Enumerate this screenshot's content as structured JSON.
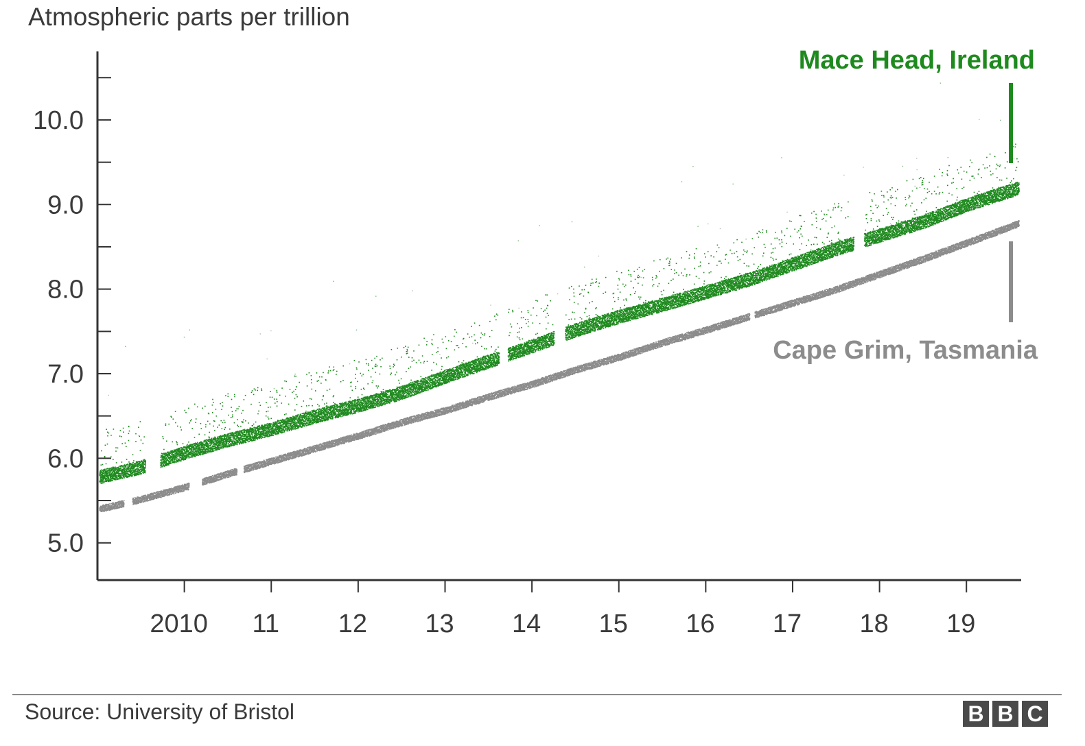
{
  "chart_data": {
    "type": "scatter",
    "title": "",
    "ylabel": "Atmospheric parts per trillion",
    "xlabel": "",
    "xlim": [
      2009.0,
      2019.63
    ],
    "ylim": [
      4.56,
      10.81
    ],
    "yticks": [
      5.0,
      6.0,
      7.0,
      8.0,
      9.0,
      10.0
    ],
    "ytick_labels": [
      "5.0",
      "6.0",
      "7.0",
      "8.0",
      "9.0",
      "10.0"
    ],
    "yminor_ticks": [
      5.5,
      6.5,
      7.5,
      8.5,
      9.5,
      10.5
    ],
    "xticks": [
      2010,
      2011,
      2012,
      2013,
      2014,
      2015,
      2016,
      2017,
      2018,
      2019
    ],
    "xtick_labels": [
      "2010",
      "11",
      "12",
      "13",
      "14",
      "15",
      "16",
      "17",
      "18",
      "19"
    ],
    "series": [
      {
        "name": "Mace Head, Ireland",
        "color": "#1e8a1e",
        "x": [
          2009.0,
          2009.5,
          2010.0,
          2010.5,
          2011.0,
          2011.5,
          2012.0,
          2012.5,
          2013.0,
          2013.5,
          2014.0,
          2014.5,
          2015.0,
          2015.5,
          2016.0,
          2016.5,
          2017.0,
          2017.5,
          2018.0,
          2018.5,
          2019.0,
          2019.6
        ],
        "y": [
          5.78,
          5.9,
          6.07,
          6.22,
          6.35,
          6.5,
          6.63,
          6.78,
          6.97,
          7.15,
          7.33,
          7.52,
          7.68,
          7.82,
          7.97,
          8.12,
          8.3,
          8.48,
          8.64,
          8.8,
          9.0,
          9.2
        ],
        "gaps": [
          [
            2009.55,
            2009.72
          ],
          [
            2013.62,
            2013.72
          ],
          [
            2014.25,
            2014.38
          ],
          [
            2017.7,
            2017.82
          ]
        ]
      },
      {
        "name": "Cape Grim, Tasmania",
        "color": "#8c8c8c",
        "x": [
          2009.0,
          2009.5,
          2010.0,
          2010.5,
          2011.0,
          2011.5,
          2012.0,
          2012.5,
          2013.0,
          2013.5,
          2014.0,
          2014.5,
          2015.0,
          2015.5,
          2016.0,
          2016.5,
          2017.0,
          2017.5,
          2018.0,
          2018.5,
          2019.0,
          2019.6
        ],
        "y": [
          5.4,
          5.52,
          5.66,
          5.82,
          5.97,
          6.12,
          6.27,
          6.43,
          6.57,
          6.73,
          6.88,
          7.05,
          7.2,
          7.37,
          7.52,
          7.68,
          7.84,
          8.0,
          8.18,
          8.36,
          8.55,
          8.78
        ],
        "gaps": [
          [
            2009.3,
            2009.4
          ],
          [
            2010.05,
            2010.2
          ],
          [
            2010.6,
            2010.68
          ],
          [
            2016.5,
            2016.56
          ]
        ]
      }
    ],
    "annotations": [
      {
        "text": "Mace Head, Ireland",
        "series": 0,
        "placement": "top-right"
      },
      {
        "text": "Cape Grim, Tasmania",
        "series": 1,
        "placement": "right"
      }
    ]
  },
  "footer": {
    "source_label": "Source:",
    "source_text": "University of Bristol",
    "logo_letters": [
      "B",
      "B",
      "C"
    ]
  }
}
